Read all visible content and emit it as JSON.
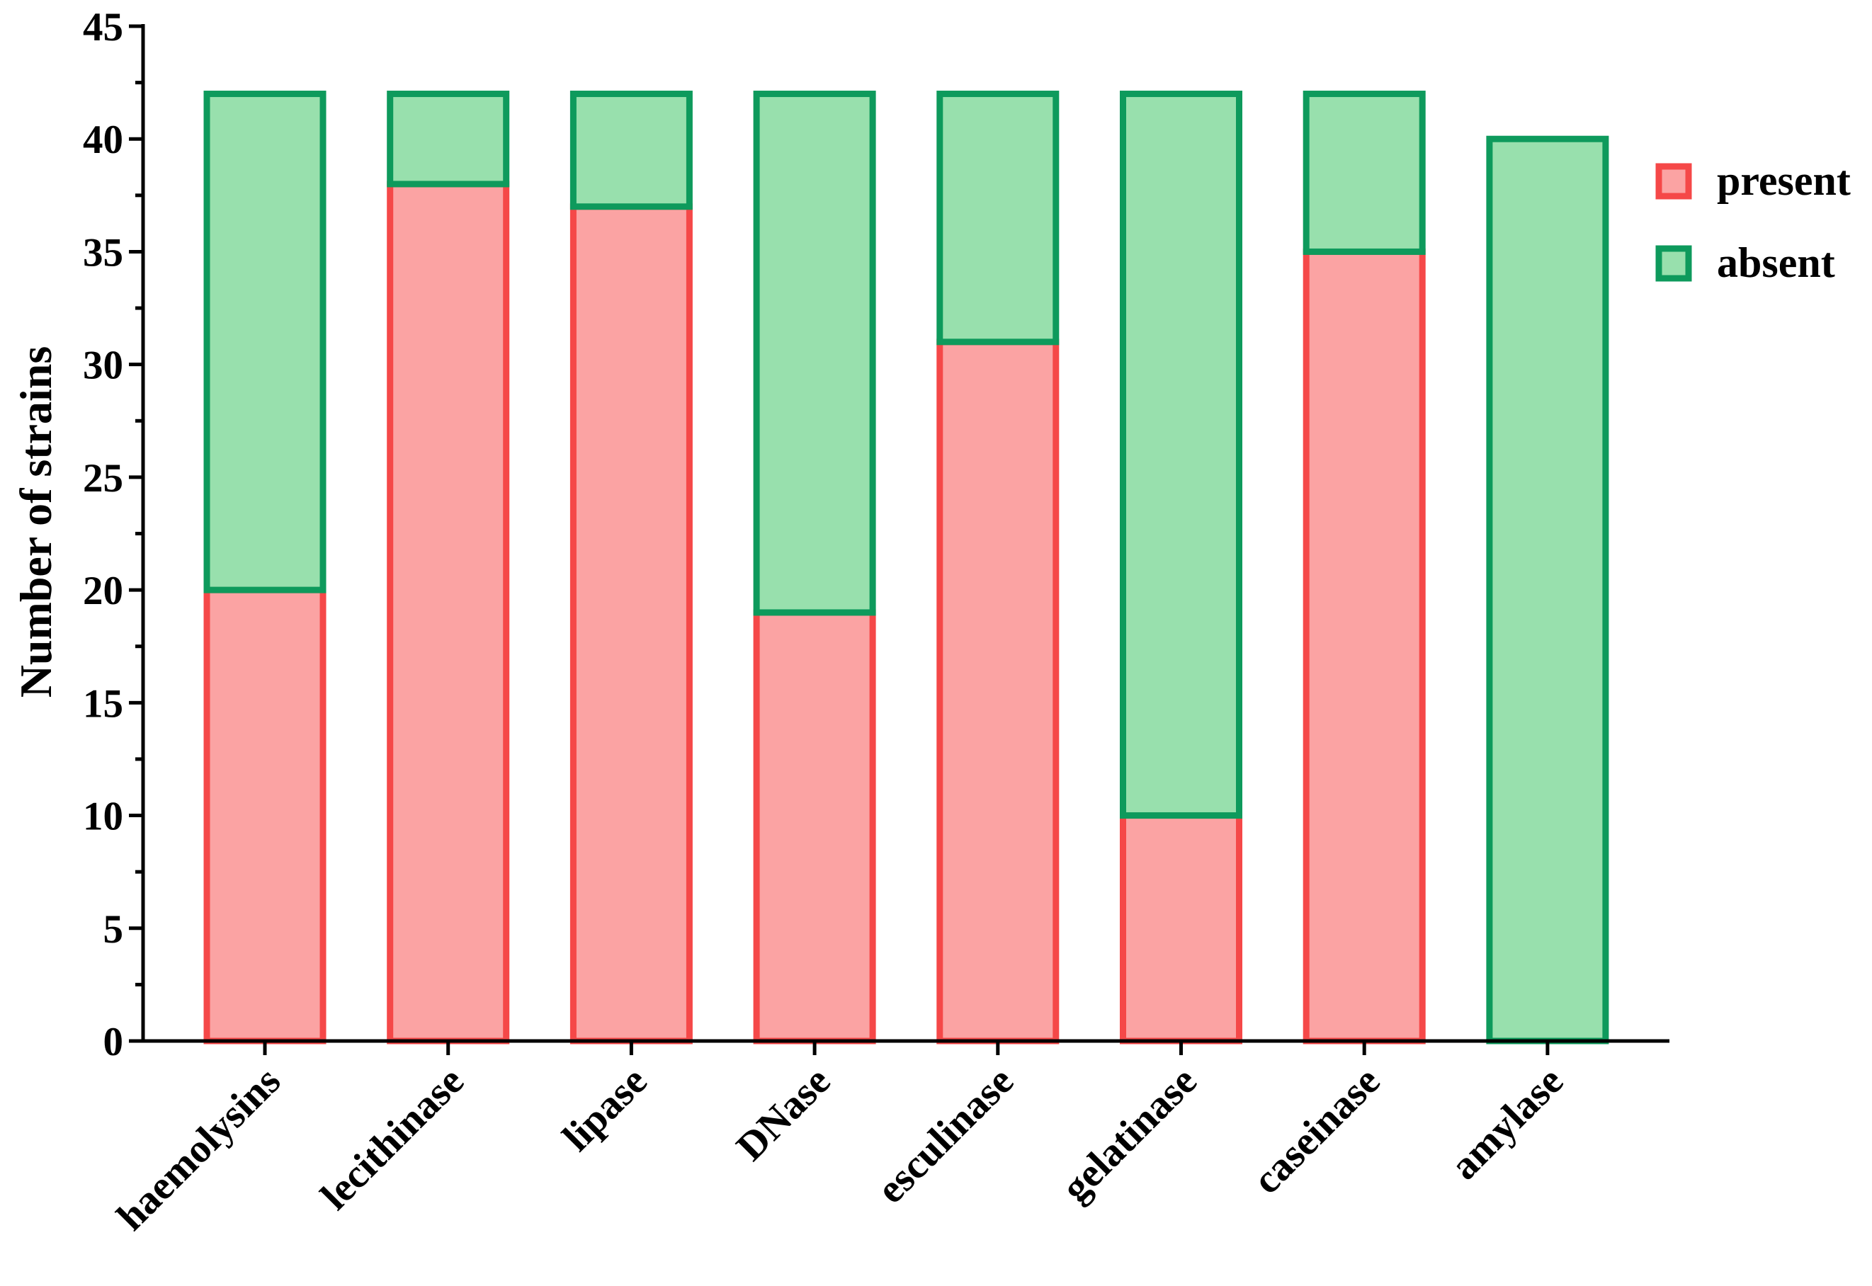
{
  "chart_data": {
    "type": "bar",
    "stacked": true,
    "title": "",
    "xlabel": "",
    "ylabel": "Number of strains",
    "ylim": [
      0,
      45
    ],
    "yticks": [
      "0",
      "5",
      "10",
      "15",
      "20",
      "25",
      "30",
      "35",
      "40",
      "45"
    ],
    "grid": false,
    "legend_position": "top-right",
    "categories": [
      "haemolysins",
      "lecithinase",
      "lipase",
      "DNase",
      "esculinase",
      "gelatinase",
      "caseinase",
      "amylase"
    ],
    "series": [
      {
        "name": "present",
        "values": [
          20,
          38,
          37,
          19,
          31,
          10,
          35,
          0
        ],
        "fill": "#FBA3A3",
        "stroke": "#F54848"
      },
      {
        "name": "absent",
        "values": [
          22,
          4,
          5,
          23,
          11,
          32,
          7,
          40
        ],
        "fill": "#98E0AD",
        "stroke": "#0E9A5C"
      }
    ]
  }
}
